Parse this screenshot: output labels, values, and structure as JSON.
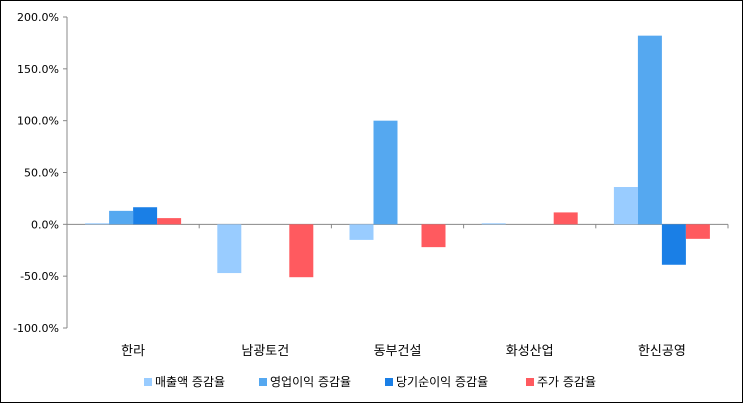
{
  "chart_data": {
    "type": "bar",
    "categories": [
      "한라",
      "남광토건",
      "동부건설",
      "화성산업",
      "한신공영"
    ],
    "series": [
      {
        "name": "매출액 증감율",
        "color": "#99ccff",
        "values": [
          1.0,
          -47.0,
          -15.0,
          1.0,
          36.0
        ]
      },
      {
        "name": "영업이익 증감율",
        "color": "#55a8f0",
        "values": [
          13.0,
          0,
          100.0,
          0,
          182.0
        ]
      },
      {
        "name": "당기순이익 증감율",
        "color": "#1a7fe6",
        "values": [
          16.5,
          0,
          0,
          0,
          -39.0
        ]
      },
      {
        "name": "주가 증감율",
        "color": "#ff5a5f",
        "values": [
          6.0,
          -51.0,
          -22.0,
          11.5,
          -14.0
        ]
      }
    ],
    "ylim": [
      -100,
      200
    ],
    "yticks": [
      "200.0%",
      "150.0%",
      "100.0%",
      "50.0%",
      "0.0%",
      "-50.0%",
      "-100.0%"
    ],
    "ytick_values": [
      200,
      150,
      100,
      50,
      0,
      -50,
      -100
    ],
    "grid": false,
    "legend": "bottom"
  }
}
